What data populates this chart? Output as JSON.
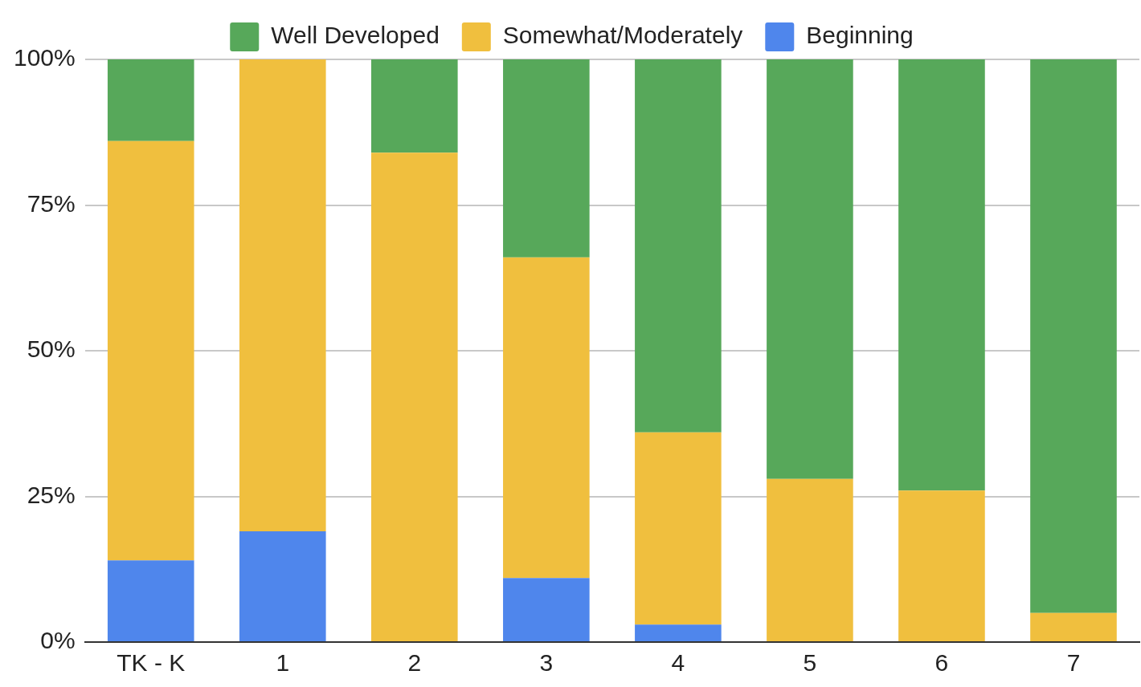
{
  "chart_data": {
    "type": "bar",
    "stacked": true,
    "categories": [
      "TK - K",
      "1",
      "2",
      "3",
      "4",
      "5",
      "6",
      "7"
    ],
    "series": [
      {
        "name": "Beginning",
        "color": "#4f86ec",
        "values": [
          14,
          19,
          0,
          11,
          3,
          0,
          0,
          0
        ]
      },
      {
        "name": "Somewhat/Moderately",
        "color": "#f0bf3e",
        "values": [
          72,
          81,
          84,
          55,
          33,
          28,
          26,
          5
        ]
      },
      {
        "name": "Well Developed",
        "color": "#57a85a",
        "values": [
          14,
          0,
          16,
          34,
          64,
          72,
          74,
          95
        ]
      }
    ],
    "ylim": [
      0,
      100
    ],
    "yticks": [
      {
        "value": 0,
        "label": "0%"
      },
      {
        "value": 25,
        "label": "25%"
      },
      {
        "value": 50,
        "label": "50%"
      },
      {
        "value": 75,
        "label": "75%"
      },
      {
        "value": 100,
        "label": "100%"
      }
    ],
    "grid": "y",
    "legend": "top"
  }
}
